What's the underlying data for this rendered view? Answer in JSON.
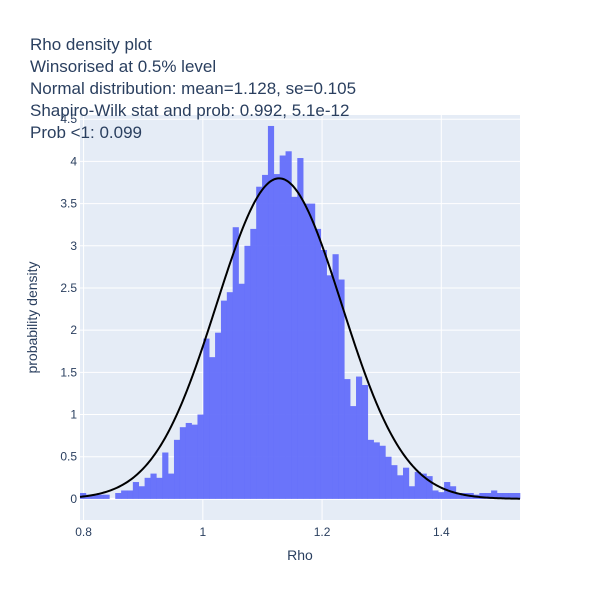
{
  "chart_data": {
    "type": "bar",
    "title_lines": [
      "Rho density plot",
      "Winsorised at 0.5% level",
      "Normal distribution: mean=1.128, se=0.105",
      "Shapiro-Wilk stat and prob: 0.992, 5.1e-12",
      "Prob <1: 0.099"
    ],
    "xlabel": "Rho",
    "ylabel": "probability density",
    "xlim": [
      0.794,
      1.532
    ],
    "ylim": [
      -0.25,
      4.55
    ],
    "x_ticks": [
      0.8,
      1,
      1.2,
      1.4
    ],
    "x_tick_labels": [
      "0.8",
      "1",
      "1.2",
      "1.4"
    ],
    "y_ticks": [
      0,
      0.5,
      1,
      1.5,
      2,
      2.5,
      3,
      3.5,
      4,
      4.5
    ],
    "y_tick_labels": [
      "0",
      "0.5",
      "1",
      "1.5",
      "2",
      "2.5",
      "3",
      "3.5",
      "4",
      "4.5"
    ],
    "grid": true,
    "bar_color": "#636efa",
    "bar_opacity": 0.95,
    "curve_color": "#000000",
    "plot_bg": "#e5ecf6",
    "histogram": {
      "start": 0.794,
      "bin_width": 0.00985,
      "values": [
        0.07,
        0.05,
        0.05,
        0.05,
        0.05,
        0.0,
        0.07,
        0.1,
        0.1,
        0.2,
        0.15,
        0.25,
        0.3,
        0.25,
        0.55,
        0.3,
        0.7,
        0.85,
        0.9,
        0.88,
        1.0,
        1.9,
        1.68,
        1.97,
        2.35,
        2.45,
        3.22,
        2.55,
        3.0,
        3.2,
        3.7,
        3.84,
        4.42,
        3.85,
        4.07,
        4.12,
        3.58,
        4.04,
        3.5,
        3.5,
        3.2,
        2.95,
        2.65,
        2.9,
        2.6,
        1.42,
        1.1,
        1.45,
        1.35,
        0.7,
        0.67,
        0.63,
        0.5,
        0.4,
        0.28,
        0.37,
        0.15,
        0.32,
        0.3,
        0.27,
        0.1,
        0.08,
        0.2,
        0.15,
        0.07,
        0.07,
        0.07,
        0.05,
        0.07,
        0.07,
        0.1,
        0.07,
        0.07,
        0.07,
        0.07
      ]
    },
    "normal_curve": {
      "mean": 1.128,
      "sd": 0.105
    }
  }
}
